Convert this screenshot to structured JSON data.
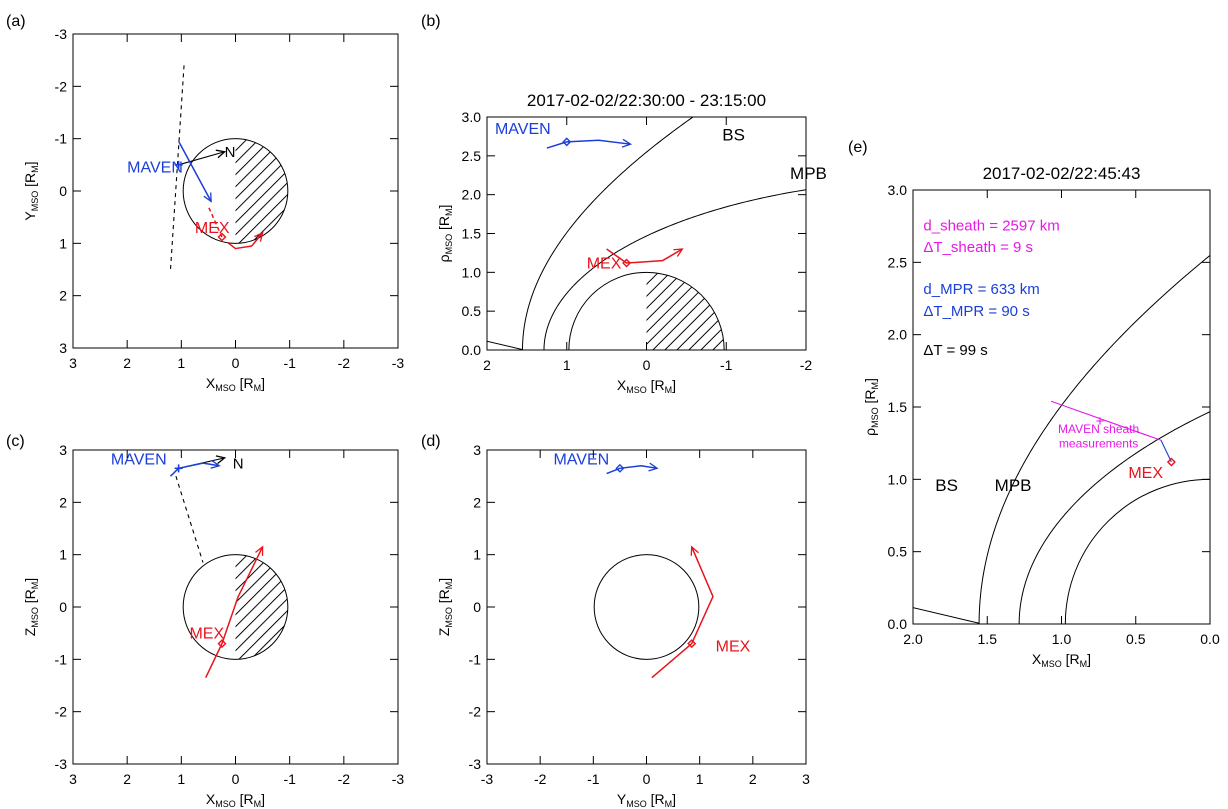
{
  "chart_data": [
    {
      "type": "scatter",
      "panel_label": "(a)",
      "title": "",
      "xlabel": {
        "main": "X",
        "sub": "MSO",
        "unit": "[R",
        "unit_sub": "M",
        "close": "]"
      },
      "ylabel": {
        "main": "Y",
        "sub": "MSO",
        "unit": "[R",
        "unit_sub": "M",
        "close": "]"
      },
      "xlim": [
        3,
        -3
      ],
      "ylim": [
        3,
        -3
      ],
      "xticks": [
        {
          "v": 3,
          "t": "3"
        },
        {
          "v": 2,
          "t": "2"
        },
        {
          "v": 1,
          "t": "1"
        },
        {
          "v": 0,
          "t": "0"
        },
        {
          "v": -1,
          "t": "-1"
        },
        {
          "v": -2,
          "t": "-2"
        },
        {
          "v": -3,
          "t": "-3"
        }
      ],
      "yticks": [
        {
          "v": -3,
          "t": "-3"
        },
        {
          "v": -2,
          "t": "-2"
        },
        {
          "v": -1,
          "t": "-1"
        },
        {
          "v": 0,
          "t": "0"
        },
        {
          "v": 1,
          "t": "1"
        },
        {
          "v": 2,
          "t": "2"
        },
        {
          "v": 3,
          "t": "3"
        }
      ],
      "planet": {
        "r": 1,
        "hatch": "night-side"
      },
      "series": [
        {
          "name": "MAVEN",
          "color": "#1a3fd8",
          "label_at": [
            2.0,
            -0.35
          ],
          "marker": "cross",
          "marker_at": [
            1.05,
            -0.5
          ],
          "path": [
            [
              1.05,
              -0.95
            ],
            [
              0.45,
              0.2
            ]
          ],
          "arrow": true
        },
        {
          "name": "MEX",
          "color": "#e8141c",
          "label_at": [
            0.75,
            0.8
          ],
          "marker": "diamond",
          "marker_at": [
            0.25,
            0.88
          ],
          "path": [
            [
              0.15,
              0.98
            ],
            [
              0.0,
              1.1
            ],
            [
              -0.3,
              1.05
            ],
            [
              -0.5,
              0.8
            ]
          ],
          "arrow": true,
          "dashed_path": [
            [
              0.25,
              0.88
            ],
            [
              0.5,
              0.3
            ]
          ]
        }
      ],
      "lines": [
        {
          "style": "dashed",
          "color": "#000000",
          "points": [
            [
              0.95,
              -2.4
            ],
            [
              1.2,
              1.5
            ]
          ]
        },
        {
          "style": "solid",
          "color": "#000000",
          "points": [
            [
              1.05,
              -0.5
            ],
            [
              0.2,
              -0.75
            ]
          ],
          "arrow": true
        }
      ],
      "annotations": [
        {
          "text": "N",
          "at": [
            0.2,
            -0.65
          ]
        }
      ]
    },
    {
      "type": "line",
      "panel_label": "(b)",
      "title": "2017-02-02/22:30:00 - 23:15:00",
      "xlabel": {
        "main": "X",
        "sub": "MSO",
        "unit": "[R",
        "unit_sub": "M",
        "close": "]"
      },
      "ylabel": {
        "main": "ρ",
        "sub": "MSO",
        "unit": "[R",
        "unit_sub": "M",
        "close": "]"
      },
      "xlim": [
        2,
        -2
      ],
      "ylim": [
        0,
        3
      ],
      "xticks": [
        {
          "v": 2,
          "t": "2"
        },
        {
          "v": 1,
          "t": "1"
        },
        {
          "v": 0,
          "t": "0"
        },
        {
          "v": -1,
          "t": "-1"
        },
        {
          "v": -2,
          "t": "-2"
        }
      ],
      "yticks": [
        {
          "v": 0,
          "t": "0.0"
        },
        {
          "v": 0.5,
          "t": "0.5"
        },
        {
          "v": 1,
          "t": "1.0"
        },
        {
          "v": 1.5,
          "t": "1.5"
        },
        {
          "v": 2,
          "t": "2.0"
        },
        {
          "v": 2.5,
          "t": "2.5"
        },
        {
          "v": 3,
          "t": "3.0"
        }
      ],
      "planet": {
        "r": 1,
        "hatch": "night-side"
      },
      "boundaries": [
        {
          "name": "BS",
          "label_at": [
            -0.95,
            2.7
          ]
        },
        {
          "name": "MPB",
          "label_at": [
            -1.8,
            2.2
          ]
        }
      ],
      "series": [
        {
          "name": "MAVEN",
          "color": "#1a3fd8",
          "label_at": [
            1.9,
            2.78
          ],
          "marker": "diamond",
          "marker_at": [
            1.0,
            2.68
          ],
          "path": [
            [
              1.25,
              2.6
            ],
            [
              1.0,
              2.68
            ],
            [
              0.6,
              2.7
            ],
            [
              0.2,
              2.65
            ]
          ],
          "arrow": true
        },
        {
          "name": "MEX",
          "color": "#e8141c",
          "label_at": [
            0.75,
            1.05
          ],
          "marker": "diamond",
          "marker_at": [
            0.25,
            1.12
          ],
          "path": [
            [
              0.5,
              1.3
            ],
            [
              0.25,
              1.12
            ],
            [
              -0.2,
              1.15
            ],
            [
              -0.45,
              1.3
            ]
          ],
          "arrow": true
        }
      ]
    },
    {
      "type": "scatter",
      "panel_label": "(c)",
      "title": "",
      "xlabel": {
        "main": "X",
        "sub": "MSO",
        "unit": "[R",
        "unit_sub": "M",
        "close": "]"
      },
      "ylabel": {
        "main": "Z",
        "sub": "MSO",
        "unit": "[R",
        "unit_sub": "M",
        "close": "]"
      },
      "xlim": [
        3,
        -3
      ],
      "ylim": [
        -3,
        3
      ],
      "xticks": [
        {
          "v": 3,
          "t": "3"
        },
        {
          "v": 2,
          "t": "2"
        },
        {
          "v": 1,
          "t": "1"
        },
        {
          "v": 0,
          "t": "0"
        },
        {
          "v": -1,
          "t": "-1"
        },
        {
          "v": -2,
          "t": "-2"
        },
        {
          "v": -3,
          "t": "-3"
        }
      ],
      "yticks": [
        {
          "v": -3,
          "t": "-3"
        },
        {
          "v": -2,
          "t": "-2"
        },
        {
          "v": -1,
          "t": "-1"
        },
        {
          "v": 0,
          "t": "0"
        },
        {
          "v": 1,
          "t": "1"
        },
        {
          "v": 2,
          "t": "2"
        },
        {
          "v": 3,
          "t": "3"
        }
      ],
      "planet": {
        "r": 1,
        "hatch": "night-side"
      },
      "series": [
        {
          "name": "MAVEN",
          "color": "#1a3fd8",
          "label_at": [
            2.3,
            2.72
          ],
          "marker": "cross",
          "marker_at": [
            1.05,
            2.65
          ],
          "path": [
            [
              1.2,
              2.5
            ],
            [
              1.05,
              2.65
            ],
            [
              0.6,
              2.75
            ],
            [
              0.3,
              2.7
            ]
          ],
          "arrow": true
        },
        {
          "name": "MEX",
          "color": "#e8141c",
          "label_at": [
            0.85,
            -0.6
          ],
          "marker": "diamond",
          "marker_at": [
            0.25,
            -0.7
          ],
          "path": [
            [
              0.55,
              -1.35
            ],
            [
              0.25,
              -0.7
            ],
            [
              -0.05,
              0.2
            ],
            [
              -0.5,
              1.15
            ]
          ],
          "arrow": true
        }
      ],
      "lines": [
        {
          "style": "dashed",
          "color": "#000000",
          "points": [
            [
              1.1,
              2.5
            ],
            [
              0.6,
              0.85
            ]
          ]
        },
        {
          "style": "solid",
          "color": "#000000",
          "points": [
            [
              1.05,
              2.65
            ],
            [
              0.2,
              2.85
            ]
          ],
          "arrow": true
        }
      ],
      "annotations": [
        {
          "text": "N",
          "at": [
            0.05,
            2.65
          ]
        }
      ]
    },
    {
      "type": "scatter",
      "panel_label": "(d)",
      "title": "",
      "xlabel": {
        "main": "Y",
        "sub": "MSO",
        "unit": "[R",
        "unit_sub": "M",
        "close": "]"
      },
      "ylabel": {
        "main": "Z",
        "sub": "MSO",
        "unit": "[R",
        "unit_sub": "M",
        "close": "]"
      },
      "xlim": [
        -3,
        3
      ],
      "ylim": [
        -3,
        3
      ],
      "xticks": [
        {
          "v": -3,
          "t": "-3"
        },
        {
          "v": -2,
          "t": "-2"
        },
        {
          "v": -1,
          "t": "-1"
        },
        {
          "v": 0,
          "t": "0"
        },
        {
          "v": 1,
          "t": "1"
        },
        {
          "v": 2,
          "t": "2"
        },
        {
          "v": 3,
          "t": "3"
        }
      ],
      "yticks": [
        {
          "v": -3,
          "t": "-3"
        },
        {
          "v": -2,
          "t": "-2"
        },
        {
          "v": -1,
          "t": "-1"
        },
        {
          "v": 0,
          "t": "0"
        },
        {
          "v": 1,
          "t": "1"
        },
        {
          "v": 2,
          "t": "2"
        },
        {
          "v": 3,
          "t": "3"
        }
      ],
      "planet": {
        "r": 1,
        "hatch": "none"
      },
      "series": [
        {
          "name": "MAVEN",
          "color": "#1a3fd8",
          "label_at": [
            -1.75,
            2.72
          ],
          "marker": "diamond",
          "marker_at": [
            -0.5,
            2.65
          ],
          "path": [
            [
              -0.75,
              2.55
            ],
            [
              -0.5,
              2.65
            ],
            [
              -0.1,
              2.7
            ],
            [
              0.2,
              2.65
            ]
          ],
          "arrow": true
        },
        {
          "name": "MEX",
          "color": "#e8141c",
          "label_at": [
            1.3,
            -0.85
          ],
          "marker": "diamond",
          "marker_at": [
            0.85,
            -0.7
          ],
          "path": [
            [
              0.1,
              -1.35
            ],
            [
              0.85,
              -0.7
            ],
            [
              1.25,
              0.2
            ],
            [
              0.85,
              1.15
            ]
          ],
          "arrow": true
        }
      ]
    },
    {
      "type": "line",
      "panel_label": "(e)",
      "title": "2017-02-02/22:45:43",
      "xlabel": {
        "main": "X",
        "sub": "MSO",
        "unit": "[R",
        "unit_sub": "M",
        "close": "]"
      },
      "ylabel": {
        "main": "ρ",
        "sub": "MSO",
        "unit": "[R",
        "unit_sub": "M",
        "close": "]"
      },
      "xlim": [
        2,
        0
      ],
      "ylim": [
        0,
        3
      ],
      "xticks": [
        {
          "v": 2,
          "t": "2.0"
        },
        {
          "v": 1.5,
          "t": "1.5"
        },
        {
          "v": 1,
          "t": "1.0"
        },
        {
          "v": 0.5,
          "t": "0.5"
        },
        {
          "v": 0,
          "t": "0.0"
        }
      ],
      "yticks": [
        {
          "v": 0,
          "t": "0.0"
        },
        {
          "v": 0.5,
          "t": "0.5"
        },
        {
          "v": 1,
          "t": "1.0"
        },
        {
          "v": 1.5,
          "t": "1.5"
        },
        {
          "v": 2,
          "t": "2.0"
        },
        {
          "v": 2.5,
          "t": "2.5"
        },
        {
          "v": 3,
          "t": "3.0"
        }
      ],
      "planet": {
        "r": 1,
        "hatch": "none"
      },
      "boundaries": [
        {
          "name": "BS",
          "label_at": [
            1.85,
            0.92
          ]
        },
        {
          "name": "MPB",
          "label_at": [
            1.45,
            0.92
          ]
        }
      ],
      "text_lines": [
        {
          "text": "d_sheath = 2597 km",
          "color": "#e619e6",
          "at": [
            1.93,
            2.72
          ]
        },
        {
          "text": "ΔT_sheath = 9 s",
          "color": "#e619e6",
          "at": [
            1.93,
            2.57
          ]
        },
        {
          "text": "d_MPR = 633 km",
          "color": "#1a3fd8",
          "at": [
            1.93,
            2.28
          ]
        },
        {
          "text": "ΔT_MPR = 90 s",
          "color": "#1a3fd8",
          "at": [
            1.93,
            2.13
          ]
        },
        {
          "text": "ΔT = 99 s",
          "color": "#000000",
          "at": [
            1.93,
            1.86
          ]
        }
      ],
      "annotations": [
        {
          "text": "MAVEN sheath",
          "color": "#e619e6",
          "at": [
            0.75,
            1.32
          ]
        },
        {
          "text": "measurements",
          "color": "#e619e6",
          "at": [
            0.75,
            1.22
          ]
        },
        {
          "text": "+",
          "color": "#e619e6",
          "at": [
            0.77,
            1.37
          ]
        }
      ],
      "series": [
        {
          "name": "MEX",
          "color": "#e8141c",
          "label_at": [
            0.55,
            1.01
          ],
          "marker": "diamond",
          "marker_at": [
            0.26,
            1.12
          ]
        }
      ],
      "segments": [
        {
          "color": "#e619e6",
          "points": [
            [
              1.07,
              1.54
            ],
            [
              0.33,
              1.27
            ]
          ]
        },
        {
          "color": "#1a3fd8",
          "points": [
            [
              0.33,
              1.27
            ],
            [
              0.26,
              1.12
            ]
          ]
        }
      ]
    }
  ]
}
